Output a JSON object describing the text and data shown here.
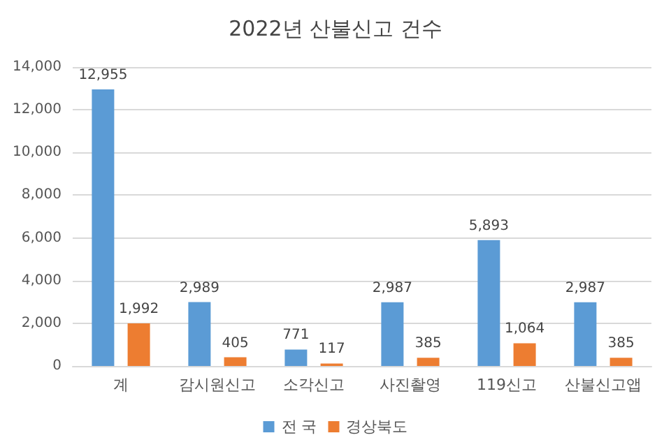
{
  "chart_data": {
    "type": "bar",
    "title": "2022년 산불신고 건수",
    "categories": [
      "계",
      "감시원신고",
      "소각신고",
      "사진촬영",
      "119신고",
      "산불신고앱"
    ],
    "series": [
      {
        "name": "전 국",
        "color": "#5b9bd5",
        "values": [
          12955,
          2989,
          771,
          2987,
          5893,
          2987
        ],
        "value_labels": [
          "12,955",
          "2,989",
          "771",
          "2,987",
          "5,893",
          "2,987"
        ]
      },
      {
        "name": "경상북도",
        "color": "#ed7d31",
        "values": [
          1992,
          405,
          117,
          385,
          1064,
          385
        ],
        "value_labels": [
          "1,992",
          "405",
          "117",
          "385",
          "1,064",
          "385"
        ]
      }
    ],
    "ylim": [
      0,
      14000
    ],
    "yticks": [
      {
        "value": 0,
        "label": "0"
      },
      {
        "value": 2000,
        "label": "2,000"
      },
      {
        "value": 4000,
        "label": "4,000"
      },
      {
        "value": 6000,
        "label": "6,000"
      },
      {
        "value": 8000,
        "label": "8,000"
      },
      {
        "value": 10000,
        "label": "10,000"
      },
      {
        "value": 12000,
        "label": "12,000"
      },
      {
        "value": 14000,
        "label": "14,000"
      }
    ],
    "grid": "y",
    "legend": "bottom"
  }
}
